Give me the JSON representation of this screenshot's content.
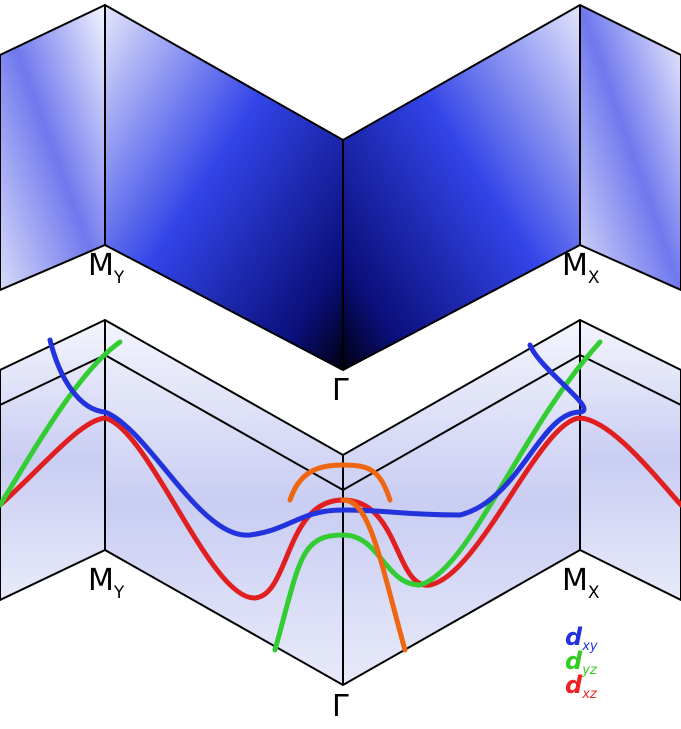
{
  "panels": [
    {
      "labels": [
        {
          "main": "M",
          "sub": "Y"
        },
        {
          "main": "M",
          "sub": "X"
        },
        {
          "main": "Γ"
        }
      ]
    },
    {
      "labels": [
        {
          "main": "M",
          "sub": "Y"
        },
        {
          "main": "M",
          "sub": "X"
        },
        {
          "main": "Γ"
        }
      ]
    }
  ],
  "legend": [
    {
      "symbol": "d",
      "sub": "xy",
      "color": "#2233dd"
    },
    {
      "symbol": "d",
      "sub": "yz",
      "color": "#33cc22"
    },
    {
      "symbol": "d",
      "sub": "xz",
      "color": "#ee2222"
    }
  ]
}
